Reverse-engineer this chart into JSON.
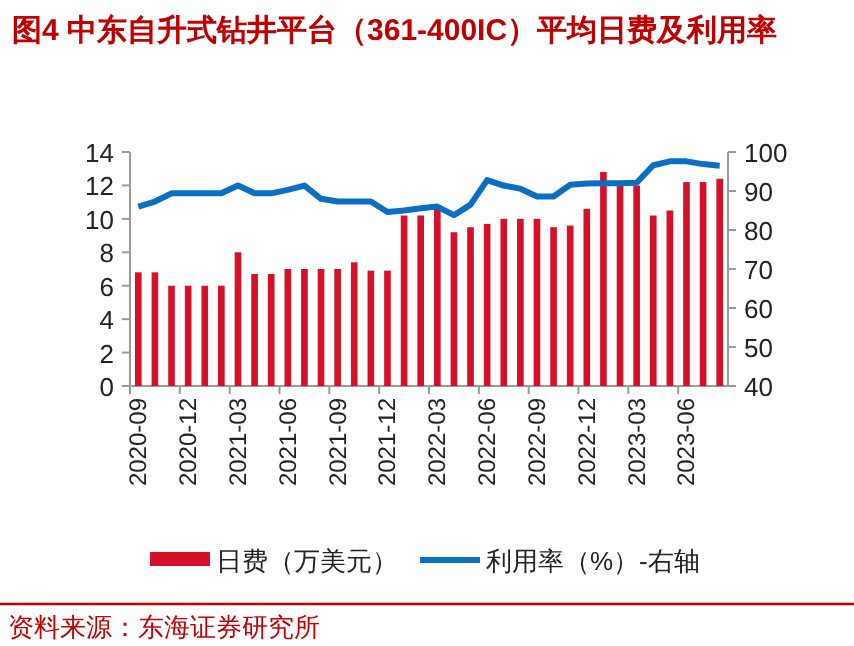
{
  "chart_data": {
    "type": "bar",
    "title": "图4  中东自升式钻井平台（361-400IC）平均日费及利用率",
    "categories": [
      "2020-09",
      null,
      null,
      "2020-12",
      null,
      null,
      "2021-03",
      null,
      null,
      "2021-06",
      null,
      null,
      "2021-09",
      null,
      null,
      "2021-12",
      null,
      null,
      "2022-03",
      null,
      null,
      "2022-06",
      null,
      null,
      "2022-09",
      null,
      null,
      "2022-12",
      null,
      null,
      "2023-03",
      null,
      null,
      "2023-06",
      null,
      null
    ],
    "series": [
      {
        "name": "日费（万美元）",
        "color": "#d7102a",
        "values": [
          6.8,
          6.8,
          6.0,
          6.0,
          6.0,
          6.0,
          8.0,
          6.7,
          6.7,
          7.0,
          7.0,
          7.0,
          7.0,
          7.4,
          6.9,
          6.9,
          10.2,
          10.2,
          10.6,
          9.2,
          9.5,
          9.7,
          10.0,
          10.0,
          10.0,
          9.5,
          9.6,
          10.6,
          12.8,
          12.0,
          12.0,
          10.2,
          10.5,
          12.2,
          12.2,
          12.4
        ]
      },
      {
        "name": "利用率（%）-右轴",
        "type": "line",
        "axis": "y2",
        "color": "#0a6fc2",
        "values": [
          86.0,
          87.3,
          89.4,
          89.4,
          89.4,
          89.4,
          91.4,
          89.4,
          89.4,
          90.3,
          91.4,
          88.0,
          87.3,
          87.3,
          87.3,
          84.6,
          85.0,
          85.6,
          86.0,
          83.8,
          86.5,
          92.8,
          91.4,
          90.6,
          88.6,
          88.6,
          91.6,
          91.9,
          92.0,
          92.0,
          92.1,
          96.6,
          97.6,
          97.6,
          96.9,
          96.5
        ]
      }
    ],
    "ylim": [
      0,
      14
    ],
    "yticks": [
      0,
      2,
      4,
      6,
      8,
      10,
      12,
      14
    ],
    "y2lim": [
      40,
      100
    ],
    "y2ticks": [
      40,
      50,
      60,
      70,
      80,
      90,
      100
    ],
    "grid": false,
    "legend": "bottom",
    "annotations": [
      "资料来源：东海证券研究所"
    ]
  }
}
